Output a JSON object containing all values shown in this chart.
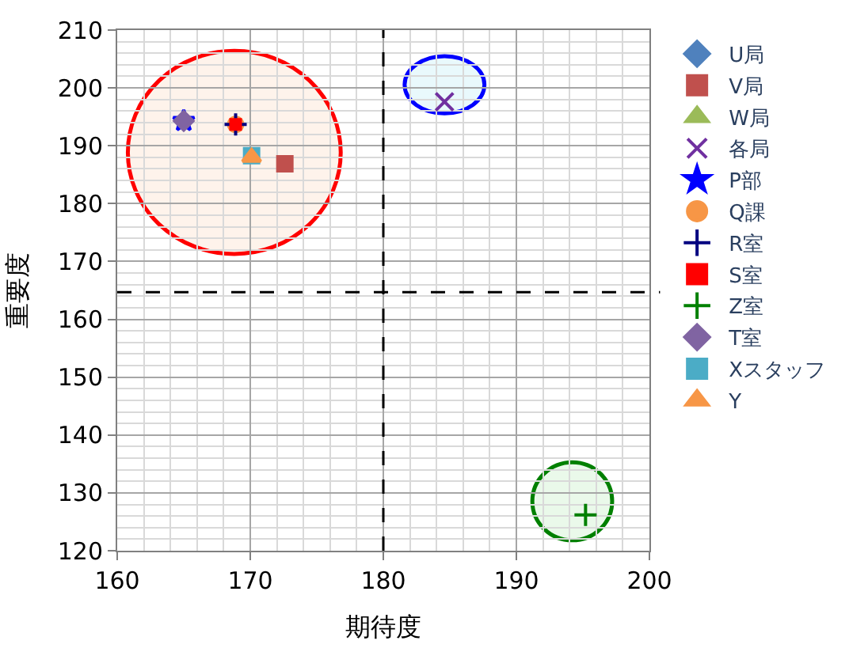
{
  "chart_data": {
    "type": "scatter",
    "xlabel": "期待度",
    "ylabel": "重要度",
    "xlim": [
      160,
      200
    ],
    "xticks": [
      160,
      170,
      180,
      190,
      200
    ],
    "ylim": [
      120,
      210
    ],
    "yticks": [
      120,
      130,
      140,
      150,
      160,
      170,
      180,
      190,
      200,
      210
    ],
    "grid": true,
    "legend": "right",
    "ref_lines": [
      {
        "axis": "x",
        "value": 180,
        "color": "#000000",
        "line_style": "dashed"
      },
      {
        "axis": "y",
        "value": 164.7,
        "color": "#000000",
        "line_style": "dashed"
      }
    ],
    "series": [
      {
        "name": "U局",
        "color": "#4f81bd",
        "marker": "diamond",
        "x": [
          null
        ],
        "values": [
          null
        ]
      },
      {
        "name": "V局",
        "color": "#c0504d",
        "marker": "square",
        "x": [
          172.6
        ],
        "values": [
          186.9
        ]
      },
      {
        "name": "W局",
        "color": "#9bbb59",
        "marker": "triangle",
        "x": [
          null
        ],
        "values": [
          null
        ]
      },
      {
        "name": "各局",
        "color": "#7030a0",
        "marker": "x",
        "x": [
          184.6
        ],
        "values": [
          197.6
        ]
      },
      {
        "name": "P部",
        "color": "#0000ff",
        "marker": "star",
        "x": [
          165.0
        ],
        "values": [
          194.3
        ]
      },
      {
        "name": "Q課",
        "color": "#f79646",
        "marker": "circle",
        "x": [
          168.9
        ],
        "values": [
          193.7
        ]
      },
      {
        "name": "R室",
        "color": "#000080",
        "marker": "cross",
        "x": [
          168.9
        ],
        "values": [
          193.7
        ]
      },
      {
        "name": "S室",
        "color": "#ff0000",
        "marker": "square",
        "x": [
          168.9
        ],
        "values": [
          193.7
        ]
      },
      {
        "name": "Z室",
        "color": "#008000",
        "marker": "cross",
        "x": [
          195.2
        ],
        "values": [
          126.2
        ]
      },
      {
        "name": "T室",
        "color": "#8064a2",
        "marker": "diamond",
        "x": [
          165.0
        ],
        "values": [
          194.3
        ]
      },
      {
        "name": "Xスタッフ",
        "color": "#4bacc6",
        "marker": "square",
        "x": [
          170.1
        ],
        "values": [
          188.3
        ]
      },
      {
        "name": "Y",
        "color": "#f79646",
        "marker": "triangle",
        "x": [
          170.1
        ],
        "values": [
          188.0
        ]
      }
    ]
  }
}
